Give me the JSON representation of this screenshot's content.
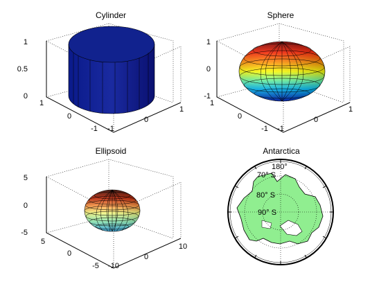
{
  "figure": {
    "background": "#ffffff",
    "axis_color": "#000000",
    "grid_style": "dotted"
  },
  "chart_data": [
    {
      "type": "surface3d",
      "title": "Cylinder",
      "xlim": [
        -1,
        1
      ],
      "ylim": [
        -1,
        1
      ],
      "zlim": [
        0,
        1
      ],
      "xticks": [
        "-1",
        "0",
        "1"
      ],
      "yticks": [
        "-1",
        "0",
        "1"
      ],
      "zticks": [
        "0",
        "0.5",
        "1"
      ],
      "grid": true,
      "colormap": "flat-navy",
      "color": "#1a2899"
    },
    {
      "type": "surface3d",
      "title": "Sphere",
      "xlim": [
        -1,
        1
      ],
      "ylim": [
        -1,
        1
      ],
      "zlim": [
        -1,
        1
      ],
      "xticks": [
        "-1",
        "0",
        "1"
      ],
      "yticks": [
        "-1",
        "0",
        "1"
      ],
      "zticks": [
        "-1",
        "0",
        "1"
      ],
      "grid": true,
      "colormap": "jet"
    },
    {
      "type": "surface3d",
      "title": "Ellipsoid",
      "xlim": [
        -10,
        10
      ],
      "ylim": [
        -5,
        5
      ],
      "zlim": [
        -5,
        5
      ],
      "xticks": [
        "-10",
        "0",
        "10"
      ],
      "yticks": [
        "-5",
        "0",
        "5"
      ],
      "zticks": [
        "-5",
        "0",
        "5"
      ],
      "grid": true,
      "colormap": "copper-jet"
    },
    {
      "type": "map",
      "title": "Antarctica",
      "projection": "polar stereographic (south pole)",
      "land_color": "#90ee90",
      "latitude_labels": [
        "70° S",
        "80° S",
        "90° S"
      ],
      "frame_label": "180°"
    }
  ]
}
